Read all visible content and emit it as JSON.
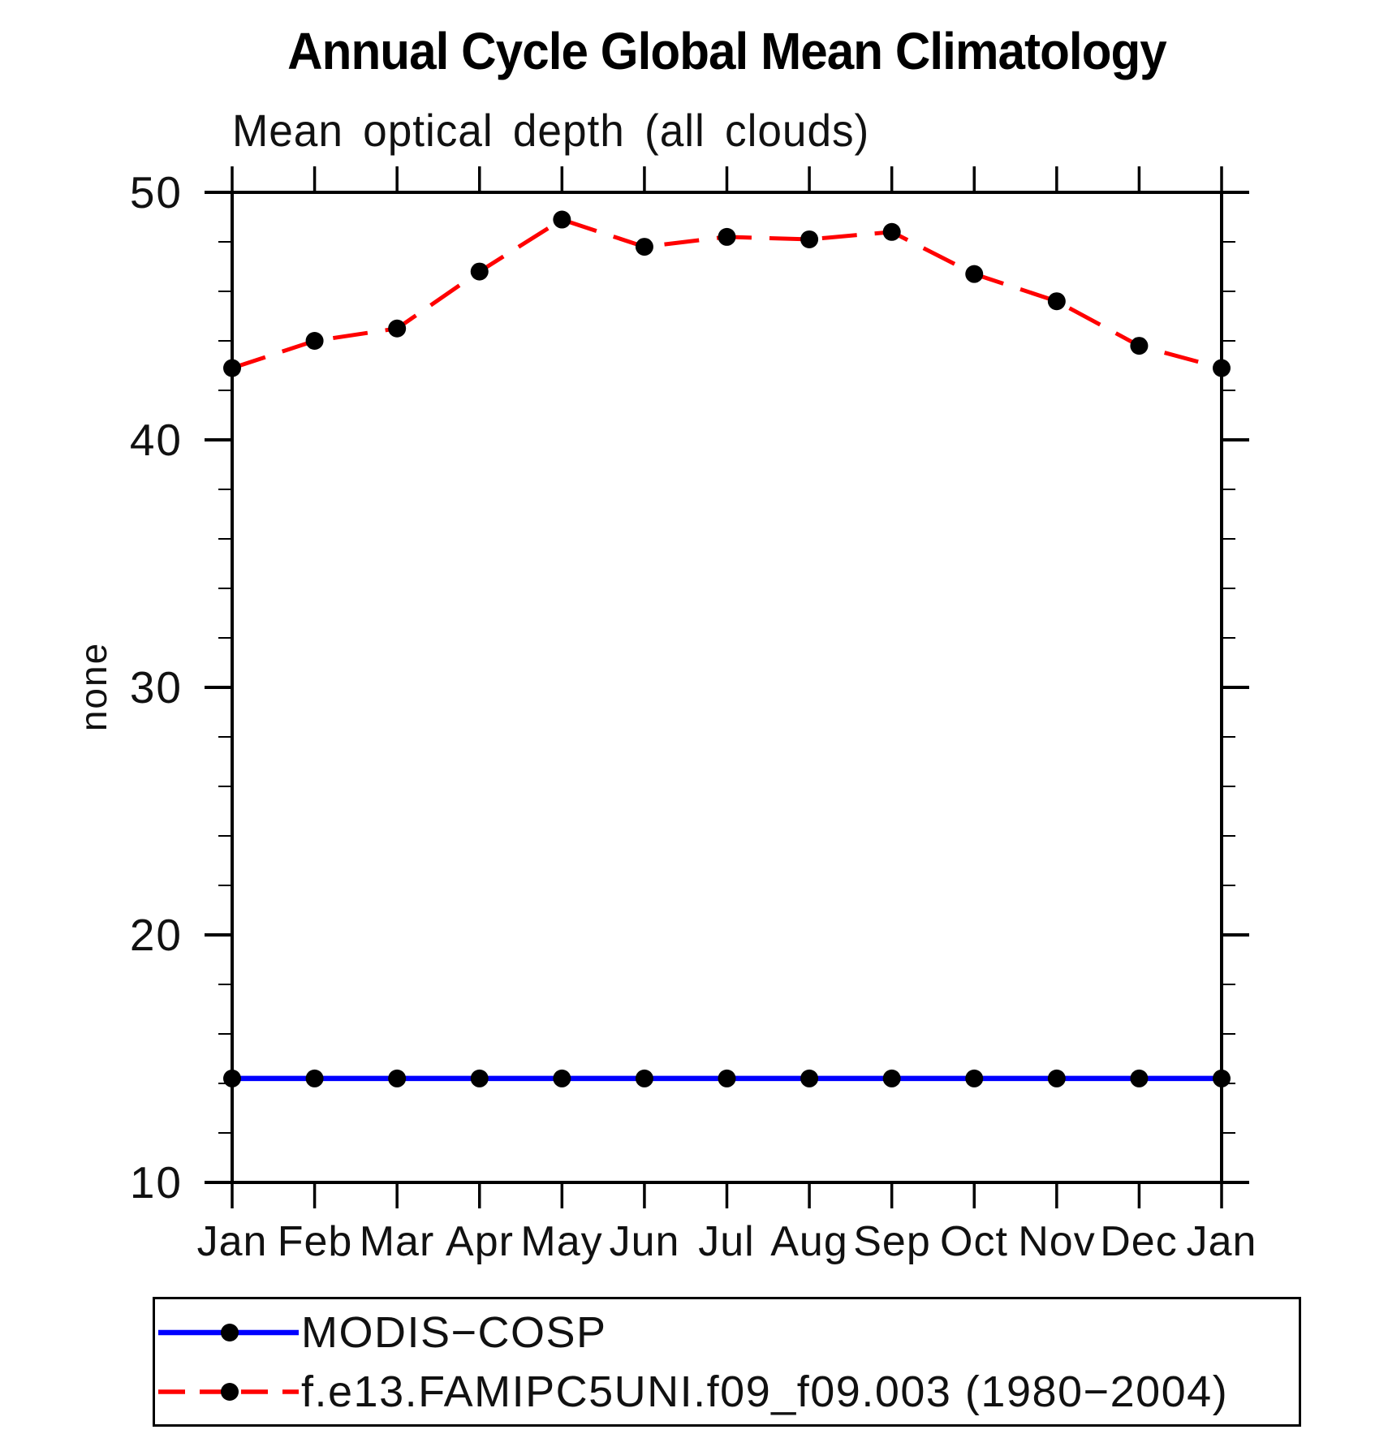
{
  "chart_data": {
    "type": "line",
    "title": "Annual Cycle Global Mean Climatology",
    "subtitle": "Mean optical depth (all clouds)",
    "xlabel": "",
    "ylabel": "none",
    "categories": [
      "Jan",
      "Feb",
      "Mar",
      "Apr",
      "May",
      "Jun",
      "Jul",
      "Aug",
      "Sep",
      "Oct",
      "Nov",
      "Dec",
      "Jan"
    ],
    "ylim": [
      10,
      50
    ],
    "ytick_major": [
      10,
      20,
      30,
      40,
      50
    ],
    "ytick_minor_step": 2,
    "grid": false,
    "legend_position": "bottom",
    "marker": "filled-circle",
    "marker_color": "#000000",
    "series": [
      {
        "name": "MODIS−COSP",
        "color": "#0000ff",
        "style": "solid",
        "values": [
          14.2,
          14.2,
          14.2,
          14.2,
          14.2,
          14.2,
          14.2,
          14.2,
          14.2,
          14.2,
          14.2,
          14.2,
          14.2
        ]
      },
      {
        "name": "f.e13.FAMIPC5UNI.f09_f09.003 (1980−2004)",
        "color": "#ff0000",
        "style": "dashed",
        "values": [
          42.9,
          44.0,
          44.5,
          46.8,
          48.9,
          47.8,
          48.2,
          48.1,
          48.4,
          46.7,
          45.6,
          43.8,
          42.9
        ]
      }
    ]
  },
  "y_axis": {
    "ticks": [
      "50",
      "40",
      "30",
      "20",
      "10"
    ]
  },
  "x_axis": {
    "ticks": [
      "Jan",
      "Feb",
      "Mar",
      "Apr",
      "May",
      "Jun",
      "Jul",
      "Aug",
      "Sep",
      "Oct",
      "Nov",
      "Dec",
      "Jan"
    ]
  }
}
